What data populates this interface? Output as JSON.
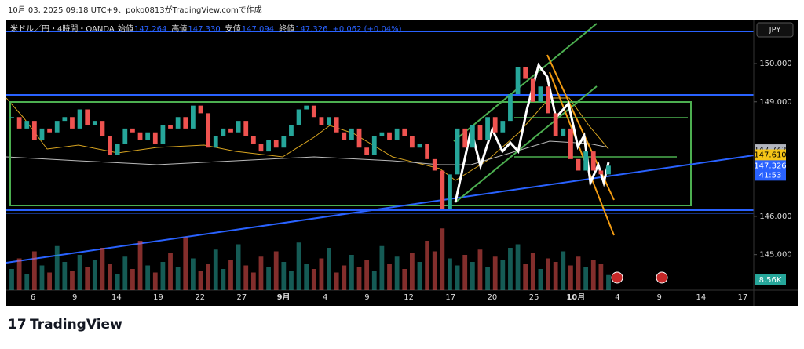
{
  "header": "10月 03, 2025 09:18 UTC+9、poko0813がTradingView.comで作成",
  "footer": "TradingView",
  "currency_button": "JPY",
  "chart_data": {
    "type": "candlestick",
    "legend": {
      "symbol": "米ドル／円・4時間・OANDA",
      "open_label": "始値",
      "open": 147.264,
      "high_label": "高値",
      "high": 147.33,
      "high_text": "147.330",
      "low_label": "安値",
      "low": 147.094,
      "close_label": "終値",
      "close": 147.326,
      "change": "+0.062 (+0.04%)"
    },
    "x_labels": [
      "6",
      "9",
      "14",
      "19",
      "22",
      "27",
      "9月",
      "4",
      "9",
      "12",
      "17",
      "20",
      "25",
      "10月",
      "4",
      "9",
      "14",
      "17"
    ],
    "series": [
      {
        "up_color": "#26a69a",
        "down_color": "#ef5350",
        "values": [
          148.6,
          148.3,
          148.5,
          148.0,
          148.3,
          148.2,
          148.5,
          148.6,
          148.3,
          148.8,
          148.4,
          148.5,
          148.1,
          147.6,
          147.9,
          148.3,
          148.2,
          148.0,
          148.2,
          147.9,
          148.4,
          148.3,
          148.6,
          148.3,
          148.9,
          148.7,
          147.8,
          148.1,
          148.3,
          148.2,
          148.5,
          148.1,
          147.9,
          147.7,
          148.0,
          147.8,
          148.1,
          148.4,
          148.8,
          148.9,
          148.6,
          148.4,
          148.6,
          148.2,
          148.0,
          148.3,
          147.8,
          147.6,
          148.1,
          148.2,
          148.0,
          148.3,
          148.1,
          147.8,
          147.9,
          147.5,
          147.2,
          146.2,
          147.1,
          148.3,
          147.8,
          148.4,
          148.0,
          148.6,
          148.2,
          148.5,
          149.2,
          149.9,
          149.6,
          149.0,
          149.4,
          148.7,
          148.1,
          148.3,
          147.5,
          147.2,
          147.7,
          147.2,
          147.1,
          147.326
        ]
      }
    ],
    "volume": {
      "ylim": [
        0,
        40
      ],
      "last_label": "8.56K",
      "values": [
        12,
        18,
        9,
        22,
        14,
        10,
        25,
        16,
        11,
        20,
        13,
        17,
        24,
        15,
        9,
        19,
        12,
        28,
        14,
        10,
        16,
        21,
        13,
        30,
        18,
        11,
        15,
        23,
        12,
        17,
        26,
        14,
        10,
        19,
        13,
        22,
        16,
        11,
        27,
        15,
        12,
        18,
        24,
        10,
        14,
        20,
        13,
        17,
        11,
        25,
        15,
        19,
        12,
        21,
        16,
        28,
        22,
        35,
        18,
        14,
        20,
        16,
        23,
        13,
        19,
        17,
        24,
        26,
        15,
        21,
        12,
        18,
        16,
        22,
        14,
        19,
        13,
        17,
        15,
        8.56
      ]
    },
    "ylim": [
      144.07,
      151.15
    ],
    "yticks": [
      {
        "value": 145,
        "label": "145.000"
      },
      {
        "value": 146,
        "label": "146.000"
      },
      {
        "value": 149,
        "label": "149.000"
      },
      {
        "value": 150,
        "label": "150.000"
      }
    ],
    "price_tags": [
      {
        "value": 147.742,
        "color": "#b2b5be"
      },
      {
        "value": 147.61,
        "label": "147.610",
        "color": "#f5c518"
      }
    ],
    "countdown": "41:53"
  }
}
